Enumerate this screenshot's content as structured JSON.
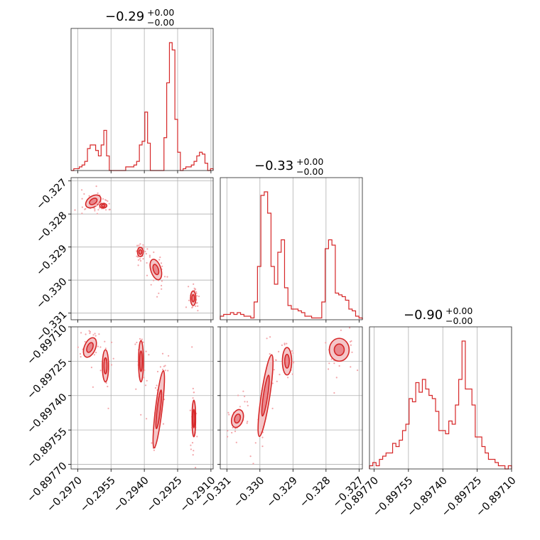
{
  "chart_data": {
    "type": "corner",
    "color": "#d62728",
    "grid": true,
    "parameters": [
      {
        "title_value": "−0.29",
        "title_upper": "+0.00",
        "title_lower": "−0.00",
        "range": [
          -0.2973,
          -0.2909
        ],
        "ticks": [
          -0.297,
          -0.2955,
          -0.294,
          -0.2925,
          -0.291
        ],
        "tick_labels": [
          "−0.2970",
          "−0.2955",
          "−0.2940",
          "−0.2925",
          "−0.2910"
        ]
      },
      {
        "title_value": "−0.33",
        "title_upper": "+0.00",
        "title_lower": "−0.00",
        "range": [
          -0.3312,
          -0.3269
        ],
        "ticks": [
          -0.331,
          -0.33,
          -0.329,
          -0.328,
          -0.327
        ],
        "tick_labels": [
          "−0.331",
          "−0.330",
          "−0.329",
          "−0.328",
          "−0.327"
        ]
      },
      {
        "title_value": "−0.90",
        "title_upper": "+0.00",
        "title_lower": "−0.00",
        "range": [
          -0.89772,
          -0.8971
        ],
        "ticks": [
          -0.8977,
          -0.89755,
          -0.8974,
          -0.89725,
          -0.8971
        ],
        "tick_labels": [
          "−0.89770",
          "−0.89755",
          "−0.89740",
          "−0.89725",
          "−0.89710"
        ]
      }
    ],
    "histograms": [
      {
        "counts": [
          0,
          1,
          1,
          2,
          3,
          5,
          12,
          14,
          14,
          11,
          8,
          14,
          22,
          8,
          0,
          0,
          0,
          0,
          0,
          0,
          2,
          2,
          2,
          3,
          5,
          14,
          16,
          32,
          15,
          0,
          0,
          0,
          0,
          0,
          18,
          48,
          70,
          66,
          28,
          10,
          0,
          1,
          2,
          2,
          3,
          5,
          8,
          10,
          9,
          4,
          0,
          1
        ]
      },
      {
        "counts": [
          2,
          3,
          3,
          4,
          3,
          4,
          3,
          2,
          2,
          1,
          10,
          30,
          70,
          72,
          60,
          30,
          20,
          38,
          45,
          18,
          8,
          6,
          6,
          5,
          4,
          2,
          2,
          1,
          1,
          1,
          10,
          40,
          45,
          42,
          15,
          14,
          13,
          11,
          6,
          5,
          2,
          1
        ]
      },
      {
        "counts": [
          1,
          2,
          1,
          3,
          4,
          5,
          5,
          8,
          7,
          9,
          12,
          14,
          22,
          21,
          27,
          24,
          28,
          25,
          23,
          22,
          18,
          12,
          12,
          11,
          15,
          14,
          20,
          28,
          40,
          25,
          25,
          20,
          10,
          10,
          7,
          5,
          3,
          3,
          2,
          1,
          1,
          0,
          1
        ]
      }
    ],
    "clusters": {
      "p0_p1": [
        {
          "cx": -0.2963,
          "cy": -0.32762,
          "rx": 0.00038,
          "ry": 0.00016,
          "angle": -0.6
        },
        {
          "cx": -0.29585,
          "cy": -0.32775,
          "rx": 0.00016,
          "ry": 7e-05,
          "angle": 0.0
        },
        {
          "cx": -0.29418,
          "cy": -0.32915,
          "rx": 0.00013,
          "ry": 0.00014,
          "angle": 0.0
        },
        {
          "cx": -0.29348,
          "cy": -0.32968,
          "rx": 0.00023,
          "ry": 0.00032,
          "angle": -0.3
        },
        {
          "cx": -0.2918,
          "cy": -0.33055,
          "rx": 0.00012,
          "ry": 0.00022,
          "angle": 0.0
        }
      ],
      "p0_p2": [
        {
          "cx": -0.29645,
          "cy": -0.89719,
          "rx": 0.00025,
          "ry": 4.5e-05,
          "angle": 0.4
        },
        {
          "cx": -0.29575,
          "cy": -0.89727,
          "rx": 0.00014,
          "ry": 7e-05,
          "angle": 0.0
        },
        {
          "cx": -0.29415,
          "cy": -0.89725,
          "rx": 0.00011,
          "ry": 9e-05,
          "angle": 0.0
        },
        {
          "cx": -0.29335,
          "cy": -0.89746,
          "rx": 0.00015,
          "ry": 0.00017,
          "angle": 0.12
        },
        {
          "cx": -0.29177,
          "cy": -0.8975,
          "rx": 7e-05,
          "ry": 8e-05,
          "angle": 0.0
        }
      ],
      "p1_p2": [
        {
          "cx": -0.33068,
          "cy": -0.8975,
          "rx": 0.00017,
          "ry": 4e-05,
          "angle": 0.3
        },
        {
          "cx": -0.32983,
          "cy": -0.8974,
          "rx": 0.00013,
          "ry": 0.00018,
          "angle": 0.15
        },
        {
          "cx": -0.32918,
          "cy": -0.89725,
          "rx": 0.00014,
          "ry": 6e-05,
          "angle": 0.0
        },
        {
          "cx": -0.3276,
          "cy": -0.8972,
          "rx": 0.0003,
          "ry": 5e-05,
          "angle": 0.0
        }
      ]
    }
  }
}
